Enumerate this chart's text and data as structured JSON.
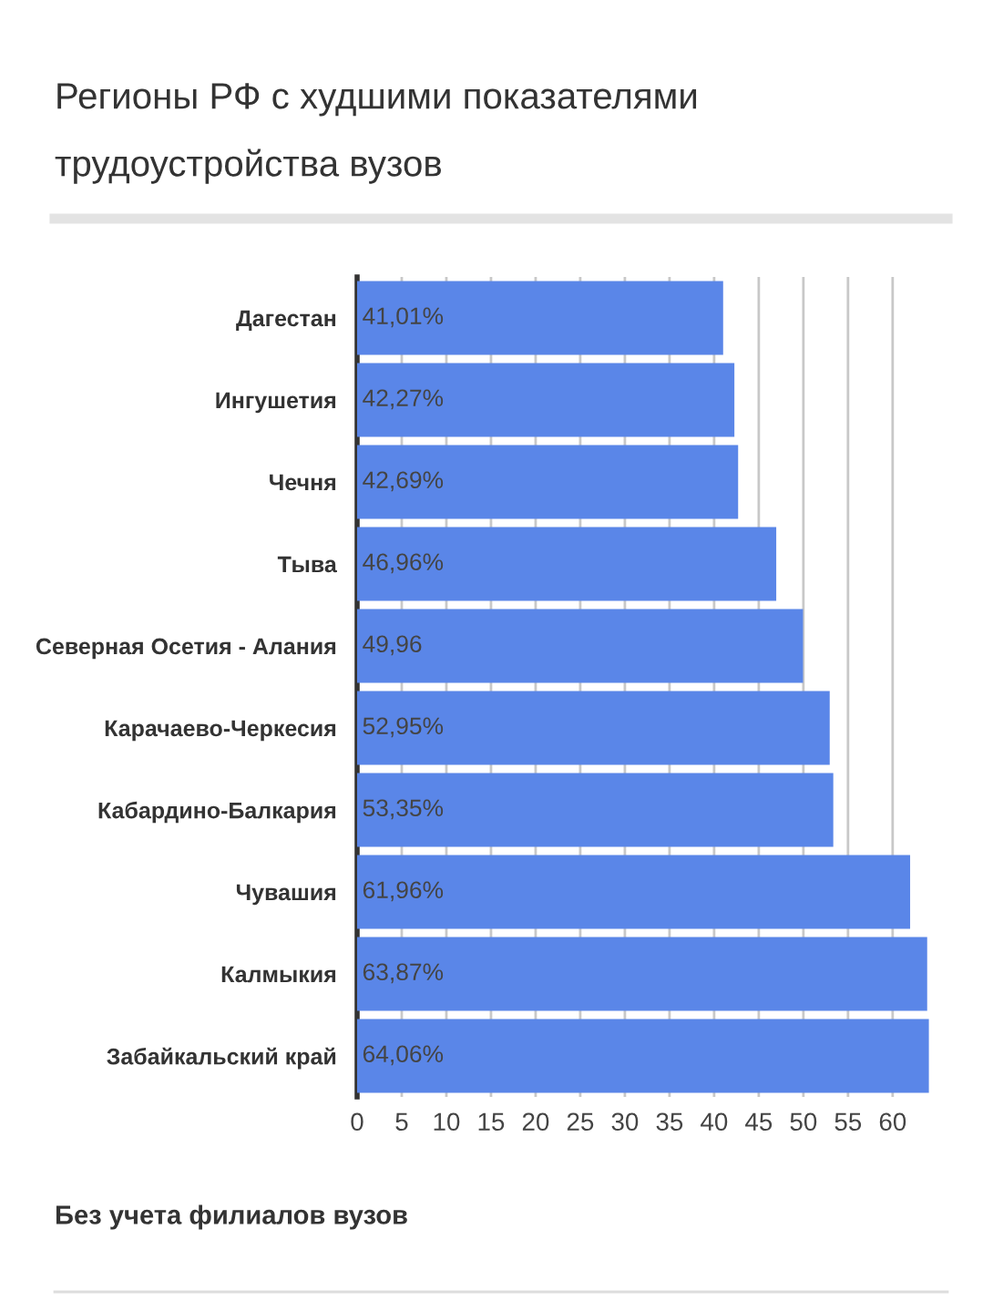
{
  "chart_data": {
    "type": "bar",
    "orientation": "horizontal",
    "title": "Регионы РФ с худшими показателями\nтрудоустройства вузов",
    "categories": [
      "Дагестан",
      "Ингушетия",
      "Чечня",
      "Тыва",
      "Северная Осетия - Алания",
      "Карачаево-Черкесия",
      "Кабардино-Балкария",
      "Чувашия",
      "Калмыкия",
      "Забайкальский край"
    ],
    "values": [
      41.01,
      42.27,
      42.69,
      46.96,
      49.96,
      52.95,
      53.35,
      61.96,
      63.87,
      64.06
    ],
    "value_labels": [
      "41,01%",
      "42,27%",
      "42,69%",
      "46,96%",
      "49,96",
      "52,95%",
      "53,35%",
      "61,96%",
      "63,87%",
      "64,06%"
    ],
    "color": "#5a86e8",
    "xlim": [
      0,
      64.1
    ],
    "xticks": [
      0,
      5,
      10,
      15,
      20,
      25,
      30,
      35,
      40,
      45,
      50,
      55,
      60
    ],
    "grid": "x",
    "legend": false,
    "annotations": [
      "Без учета филиалов вузов"
    ]
  }
}
